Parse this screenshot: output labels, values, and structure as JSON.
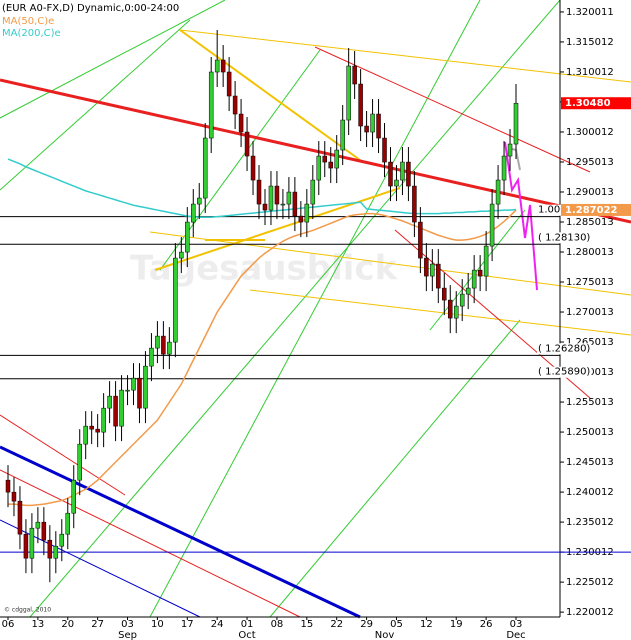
{
  "chart_data": {
    "type": "candlestick",
    "title": "(EUR A0-FX,D) Dynamic,0:00-24:00",
    "watermark": "Tagesausblick",
    "copyright": "© cdggal, 2010",
    "categories": [
      "06",
      null,
      null,
      null,
      null,
      "13",
      null,
      null,
      null,
      null,
      "20",
      null,
      null,
      null,
      null,
      "27",
      null,
      null,
      null,
      null,
      "03",
      null,
      null,
      null,
      null,
      "10",
      null,
      null,
      null,
      null,
      "17",
      null,
      null,
      null,
      null,
      "24",
      null,
      null,
      null,
      null,
      "01",
      null,
      null,
      null,
      null,
      "08",
      null,
      null,
      null,
      null,
      "15",
      null,
      null,
      null,
      null,
      "22",
      null,
      null,
      null,
      null,
      "29",
      null,
      null,
      null,
      null,
      "05",
      null,
      null,
      null,
      null,
      "12",
      null,
      null,
      null,
      null,
      "19",
      null,
      null,
      null,
      null,
      "26",
      null,
      null,
      null,
      null,
      "03"
    ],
    "month_labels": [
      null,
      null,
      null,
      null,
      null,
      null,
      null,
      null,
      null,
      null,
      null,
      null,
      null,
      null,
      null,
      null,
      null,
      null,
      null,
      null,
      "Sep",
      null,
      null,
      null,
      null,
      null,
      null,
      null,
      null,
      null,
      null,
      null,
      null,
      null,
      null,
      null,
      null,
      null,
      null,
      null,
      "Oct",
      null,
      null,
      null,
      null,
      null,
      null,
      null,
      null,
      null,
      null,
      null,
      null,
      null,
      null,
      null,
      null,
      null,
      null,
      null,
      null,
      null,
      null,
      "Nov",
      null,
      null,
      null,
      null,
      null,
      null,
      null,
      null,
      null,
      null,
      null,
      null,
      null,
      null,
      null,
      null,
      null,
      null,
      null,
      null,
      null,
      "Dec"
    ],
    "open": [
      1.242,
      1.24,
      1.2385,
      1.233,
      1.229,
      1.234,
      1.235,
      1.232,
      1.229,
      1.231,
      1.233,
      1.2365,
      1.242,
      1.248,
      1.251,
      1.2505,
      1.25,
      1.254,
      1.256,
      1.251,
      1.257,
      1.257,
      1.259,
      1.254,
      1.261,
      1.264,
      1.266,
      1.263,
      1.265,
      1.279,
      1.28,
      1.285,
      1.288,
      1.289,
      1.299,
      1.31,
      1.312,
      1.31,
      1.306,
      1.303,
      1.3,
      1.296,
      1.292,
      1.288,
      1.287,
      1.291,
      1.288,
      1.288,
      1.29,
      1.286,
      1.285,
      1.288,
      1.292,
      1.296,
      1.295,
      1.294,
      1.297,
      1.302,
      1.311,
      1.308,
      1.301,
      1.3,
      1.303,
      1.299,
      1.295,
      1.291,
      1.292,
      1.295,
      1.291,
      1.285,
      1.279,
      1.276,
      1.278,
      1.274,
      1.272,
      1.269,
      1.271,
      1.273,
      1.274,
      1.277,
      1.276,
      1.281,
      1.288,
      1.292,
      1.296,
      1.298
    ],
    "high": [
      1.2445,
      1.2425,
      1.241,
      1.2355,
      1.2365,
      1.2375,
      1.2375,
      1.2345,
      1.2335,
      1.2355,
      1.239,
      1.2445,
      1.2505,
      1.2535,
      1.2535,
      1.253,
      1.2565,
      1.2585,
      1.2585,
      1.2595,
      1.2595,
      1.2615,
      1.2615,
      1.2635,
      1.2665,
      1.2685,
      1.2685,
      1.2675,
      1.2815,
      1.2825,
      1.2875,
      1.2905,
      1.2915,
      1.3015,
      1.3125,
      1.317,
      1.3145,
      1.3125,
      1.3085,
      1.3055,
      1.3025,
      1.2985,
      1.2945,
      1.2905,
      1.2935,
      1.2935,
      1.2905,
      1.2925,
      1.2925,
      1.2885,
      1.2905,
      1.2945,
      1.2985,
      1.2985,
      1.2975,
      1.2995,
      1.3045,
      1.314,
      1.3135,
      1.3105,
      1.3035,
      1.3055,
      1.3055,
      1.3015,
      1.2975,
      1.2945,
      1.2975,
      1.2975,
      1.2935,
      1.2875,
      1.2815,
      1.2805,
      1.2805,
      1.2765,
      1.2745,
      1.2735,
      1.2755,
      1.2765,
      1.2795,
      1.2795,
      1.2835,
      1.2905,
      1.2945,
      1.2985,
      1.3005,
      1.308
    ],
    "low": [
      1.2375,
      1.236,
      1.2305,
      1.2265,
      1.2265,
      1.2315,
      1.2295,
      1.225,
      1.2265,
      1.2285,
      1.2305,
      1.234,
      1.2395,
      1.2455,
      1.248,
      1.2475,
      1.2475,
      1.2515,
      1.2485,
      1.2485,
      1.2545,
      1.2545,
      1.2515,
      1.2515,
      1.2585,
      1.2615,
      1.2605,
      1.2605,
      1.2625,
      1.2765,
      1.2775,
      1.2825,
      1.2855,
      1.2865,
      1.2965,
      1.3075,
      1.3075,
      1.3035,
      1.3005,
      1.2975,
      1.2935,
      1.2895,
      1.2855,
      1.2845,
      1.2845,
      1.2855,
      1.2855,
      1.2855,
      1.2835,
      1.2825,
      1.2825,
      1.2855,
      1.2895,
      1.2925,
      1.2915,
      1.2915,
      1.2945,
      1.2995,
      1.3055,
      1.2985,
      1.2975,
      1.2975,
      1.2965,
      1.2925,
      1.2885,
      1.2885,
      1.2895,
      1.2885,
      1.2825,
      1.2765,
      1.2735,
      1.2735,
      1.2715,
      1.2695,
      1.2665,
      1.2665,
      1.2685,
      1.2705,
      1.2715,
      1.2735,
      1.2735,
      1.2785,
      1.2855,
      1.2895,
      1.2935,
      1.2955
    ],
    "close": [
      1.24,
      1.2385,
      1.233,
      1.229,
      1.234,
      1.235,
      1.232,
      1.229,
      1.231,
      1.233,
      1.2365,
      1.242,
      1.248,
      1.251,
      1.2505,
      1.25,
      1.254,
      1.256,
      1.251,
      1.257,
      1.257,
      1.259,
      1.254,
      1.261,
      1.264,
      1.266,
      1.263,
      1.265,
      1.279,
      1.28,
      1.285,
      1.288,
      1.289,
      1.299,
      1.31,
      1.312,
      1.31,
      1.306,
      1.303,
      1.3,
      1.296,
      1.292,
      1.288,
      1.287,
      1.291,
      1.288,
      1.288,
      1.29,
      1.286,
      1.285,
      1.288,
      1.292,
      1.296,
      1.295,
      1.294,
      1.297,
      1.302,
      1.311,
      1.308,
      1.301,
      1.3,
      1.303,
      1.299,
      1.295,
      1.291,
      1.292,
      1.295,
      1.291,
      1.285,
      1.279,
      1.276,
      1.278,
      1.274,
      1.272,
      1.269,
      1.271,
      1.273,
      1.274,
      1.277,
      1.276,
      1.281,
      1.288,
      1.292,
      1.296,
      1.298,
      1.3048
    ],
    "up_color": "#33cc33",
    "down_color": "#990000",
    "series": [
      {
        "name": "MA(50,C)e",
        "color": "#f29a4a",
        "values": [
          1.238,
          1.238,
          1.2379,
          1.2378,
          1.2378,
          1.2379,
          1.238,
          1.2382,
          1.2384,
          1.2386,
          1.239,
          1.2395,
          1.24,
          1.2405,
          1.2412,
          1.242,
          1.243,
          1.244,
          1.245,
          1.246,
          1.247,
          1.248,
          1.249,
          1.25,
          1.251,
          1.252,
          1.2535,
          1.255,
          1.2565,
          1.258,
          1.26,
          1.262,
          1.264,
          1.266,
          1.268,
          1.27,
          1.2715,
          1.273,
          1.2745,
          1.276,
          1.277,
          1.278,
          1.279,
          1.2798,
          1.2805,
          1.2812,
          1.2818,
          1.2823,
          1.2827,
          1.283,
          1.2833,
          1.2836,
          1.284,
          1.2844,
          1.2848,
          1.2852,
          1.2856,
          1.286,
          1.2862,
          1.2863,
          1.2864,
          1.2864,
          1.2863,
          1.2861,
          1.2858,
          1.2855,
          1.2852,
          1.2848,
          1.2844,
          1.284,
          1.2836,
          1.2832,
          1.2828,
          1.2825,
          1.2822,
          1.282,
          1.282,
          1.2821,
          1.2823,
          1.2826,
          1.283,
          1.2836,
          1.2843,
          1.2851,
          1.286,
          1.287
        ]
      },
      {
        "name": "MA(200,C)e",
        "color": "#33cccc",
        "values": [
          1.2955,
          1.2951,
          1.2947,
          1.2942,
          1.2938,
          1.2934,
          1.293,
          1.2926,
          1.2922,
          1.2918,
          1.2914,
          1.291,
          1.2906,
          1.2902,
          1.2899,
          1.2896,
          1.2893,
          1.289,
          1.2887,
          1.2884,
          1.2881,
          1.2878,
          1.2876,
          1.2874,
          1.2872,
          1.287,
          1.2868,
          1.2866,
          1.2864,
          1.2862,
          1.286,
          1.2859,
          1.2858,
          1.2858,
          1.2858,
          1.2859,
          1.286,
          1.2861,
          1.2862,
          1.2863,
          1.2864,
          1.2865,
          1.2866,
          1.2867,
          1.2868,
          1.2869,
          1.287,
          1.2871,
          1.2872,
          1.2873,
          1.2874,
          1.2875,
          1.2876,
          1.2877,
          1.2878,
          1.2879,
          1.288,
          1.2881,
          1.2882,
          1.2883,
          1.2872,
          1.2871,
          1.287,
          1.2869,
          1.2868,
          1.2867,
          1.2866,
          1.2865,
          1.2864,
          1.2864,
          1.2864,
          1.2864,
          1.2864,
          1.2865,
          1.2865,
          1.2866,
          1.2866,
          1.2867,
          1.2867,
          1.2868,
          1.2868,
          1.2869,
          1.2869,
          1.287,
          1.287,
          1.2871
        ]
      }
    ],
    "levels": [
      {
        "value": 1.2859,
        "label": "1.000 (1.2859)",
        "color": "#000000"
      },
      {
        "value": 1.2813,
        "label": "( 1.28130)",
        "color": "#000000"
      },
      {
        "value": 1.2628,
        "label": "( 1.26280)",
        "color": "#000000"
      },
      {
        "value": 1.2589,
        "label": "( 1.25890)",
        "color": "#000000"
      },
      {
        "value": 1.23,
        "color": "#0000cc"
      }
    ],
    "price_labels": [
      {
        "value": 1.3048,
        "label": "1.30480",
        "color": "#ff0000"
      },
      {
        "value": 1.287022,
        "color": "#f29a4a"
      }
    ],
    "ylim": [
      1.2192,
      1.322
    ],
    "yticks": [
      1.320011,
      1.315012,
      1.310012,
      1.305012,
      1.300012,
      1.295013,
      1.290013,
      1.285013,
      1.280013,
      1.275013,
      1.270013,
      1.265013,
      1.260013,
      1.255013,
      1.250013,
      1.245013,
      1.240012,
      1.235012,
      1.230012,
      1.225012,
      1.220012
    ]
  }
}
